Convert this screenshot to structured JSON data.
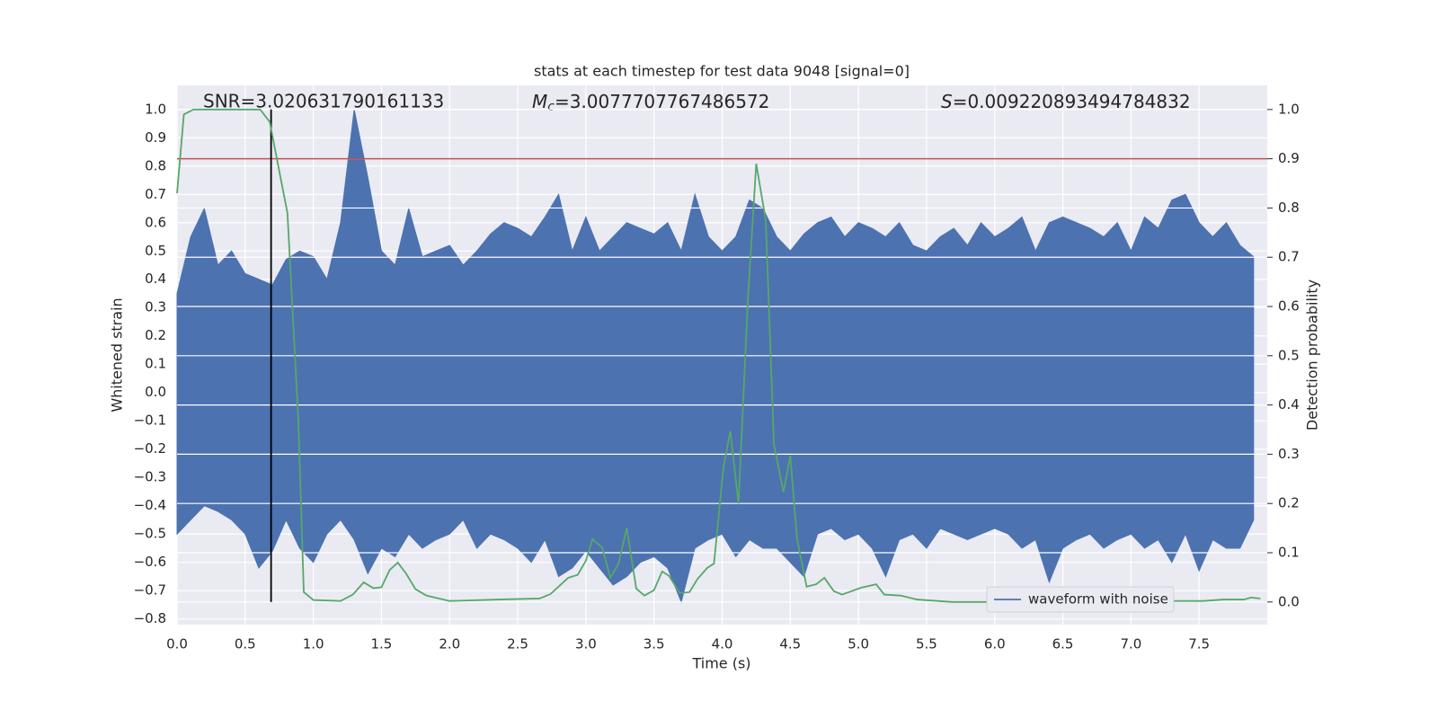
{
  "chart_data": {
    "type": "line",
    "title": "stats at each timestep for test data 9048 [signal=0]",
    "xlabel": "Time (s)",
    "ylabel": "Whitened strain",
    "y2label": "Detection probability",
    "xlim": [
      0,
      8.0
    ],
    "ylim": [
      -0.82,
      1.085
    ],
    "y2lim": [
      -0.046,
      1.049
    ],
    "xticks": [
      {
        "value": 0,
        "label": "0.0"
      },
      {
        "value": 0.5,
        "label": "0.5"
      },
      {
        "value": 1,
        "label": "1.0"
      },
      {
        "value": 1.5,
        "label": "1.5"
      },
      {
        "value": 2,
        "label": "2.0"
      },
      {
        "value": 2.5,
        "label": "2.5"
      },
      {
        "value": 3,
        "label": "3.0"
      },
      {
        "value": 3.5,
        "label": "3.5"
      },
      {
        "value": 4,
        "label": "4.0"
      },
      {
        "value": 4.5,
        "label": "4.5"
      },
      {
        "value": 5,
        "label": "5.0"
      },
      {
        "value": 5.5,
        "label": "5.5"
      },
      {
        "value": 6,
        "label": "6.0"
      },
      {
        "value": 6.5,
        "label": "6.5"
      },
      {
        "value": 7,
        "label": "7.0"
      },
      {
        "value": 7.5,
        "label": "7.5"
      }
    ],
    "yticks": [
      {
        "value": -0.8,
        "label": "−0.8"
      },
      {
        "value": -0.7,
        "label": "−0.7"
      },
      {
        "value": -0.6,
        "label": "−0.6"
      },
      {
        "value": -0.5,
        "label": "−0.5"
      },
      {
        "value": -0.4,
        "label": "−0.4"
      },
      {
        "value": -0.3,
        "label": "−0.3"
      },
      {
        "value": -0.2,
        "label": "−0.2"
      },
      {
        "value": -0.1,
        "label": "−0.1"
      },
      {
        "value": 0,
        "label": "0.0"
      },
      {
        "value": 0.1,
        "label": "0.1"
      },
      {
        "value": 0.2,
        "label": "0.2"
      },
      {
        "value": 0.3,
        "label": "0.3"
      },
      {
        "value": 0.4,
        "label": "0.4"
      },
      {
        "value": 0.5,
        "label": "0.5"
      },
      {
        "value": 0.6,
        "label": "0.6"
      },
      {
        "value": 0.7,
        "label": "0.7"
      },
      {
        "value": 0.8,
        "label": "0.8"
      },
      {
        "value": 0.9,
        "label": "0.9"
      },
      {
        "value": 1.0,
        "label": "1.0"
      }
    ],
    "y2ticks": [
      {
        "value": 0,
        "label": "0.0"
      },
      {
        "value": 0.1,
        "label": "0.1"
      },
      {
        "value": 0.2,
        "label": "0.2"
      },
      {
        "value": 0.3,
        "label": "0.3"
      },
      {
        "value": 0.4,
        "label": "0.4"
      },
      {
        "value": 0.5,
        "label": "0.5"
      },
      {
        "value": 0.6,
        "label": "0.6"
      },
      {
        "value": 0.7,
        "label": "0.7"
      },
      {
        "value": 0.8,
        "label": "0.8"
      },
      {
        "value": 0.9,
        "label": "0.9"
      },
      {
        "value": 1.0,
        "label": "1.0"
      }
    ],
    "grid": true,
    "legend": "lower right",
    "series": [
      {
        "name": "waveform with noise",
        "color": "#4c72b0",
        "x": [
          0,
          0.1,
          0.2,
          0.3,
          0.4,
          0.5,
          0.6,
          0.7,
          0.8,
          0.9,
          1.0,
          1.1,
          1.2,
          1.3,
          1.4,
          1.5,
          1.6,
          1.7,
          1.8,
          1.9,
          2.0,
          2.1,
          2.2,
          2.3,
          2.4,
          2.5,
          2.6,
          2.7,
          2.8,
          2.9,
          3.0,
          3.1,
          3.2,
          3.3,
          3.4,
          3.5,
          3.6,
          3.7,
          3.8,
          3.9,
          4.0,
          4.1,
          4.2,
          4.3,
          4.4,
          4.5,
          4.6,
          4.7,
          4.8,
          4.9,
          5.0,
          5.1,
          5.2,
          5.3,
          5.4,
          5.5,
          5.6,
          5.7,
          5.8,
          5.9,
          6.0,
          6.1,
          6.2,
          6.3,
          6.4,
          6.5,
          6.6,
          6.7,
          6.8,
          6.9,
          7.0,
          7.1,
          7.2,
          7.3,
          7.4,
          7.5,
          7.6,
          7.7,
          7.8,
          7.9
        ],
        "high": [
          0.35,
          0.55,
          0.65,
          0.45,
          0.5,
          0.42,
          0.4,
          0.38,
          0.47,
          0.5,
          0.48,
          0.4,
          0.6,
          1.0,
          0.76,
          0.5,
          0.45,
          0.65,
          0.48,
          0.5,
          0.52,
          0.45,
          0.5,
          0.56,
          0.6,
          0.58,
          0.55,
          0.62,
          0.7,
          0.5,
          0.62,
          0.5,
          0.55,
          0.6,
          0.58,
          0.56,
          0.6,
          0.5,
          0.7,
          0.55,
          0.5,
          0.55,
          0.68,
          0.65,
          0.55,
          0.5,
          0.56,
          0.6,
          0.62,
          0.55,
          0.6,
          0.58,
          0.55,
          0.6,
          0.52,
          0.5,
          0.55,
          0.58,
          0.52,
          0.6,
          0.55,
          0.58,
          0.62,
          0.5,
          0.6,
          0.62,
          0.6,
          0.58,
          0.55,
          0.6,
          0.5,
          0.62,
          0.58,
          0.68,
          0.7,
          0.6,
          0.55,
          0.6,
          0.52,
          0.48
        ],
        "low": [
          -0.5,
          -0.45,
          -0.4,
          -0.42,
          -0.45,
          -0.5,
          -0.62,
          -0.56,
          -0.45,
          -0.55,
          -0.6,
          -0.5,
          -0.45,
          -0.52,
          -0.64,
          -0.55,
          -0.58,
          -0.5,
          -0.55,
          -0.52,
          -0.5,
          -0.45,
          -0.55,
          -0.5,
          -0.52,
          -0.55,
          -0.6,
          -0.52,
          -0.65,
          -0.62,
          -0.56,
          -0.62,
          -0.68,
          -0.65,
          -0.6,
          -0.58,
          -0.62,
          -0.74,
          -0.55,
          -0.52,
          -0.5,
          -0.58,
          -0.52,
          -0.55,
          -0.55,
          -0.6,
          -0.65,
          -0.5,
          -0.48,
          -0.52,
          -0.5,
          -0.55,
          -0.65,
          -0.52,
          -0.5,
          -0.55,
          -0.48,
          -0.5,
          -0.52,
          -0.5,
          -0.48,
          -0.5,
          -0.55,
          -0.52,
          -0.67,
          -0.55,
          -0.52,
          -0.5,
          -0.55,
          -0.52,
          -0.5,
          -0.55,
          -0.52,
          -0.6,
          -0.5,
          -0.63,
          -0.52,
          -0.55,
          -0.55,
          -0.45
        ]
      },
      {
        "color": "#55a868",
        "axis": "y2",
        "x": [
          0,
          0.05,
          0.12,
          0.61,
          0.68,
          0.75,
          0.81,
          0.89,
          0.93,
          1.0,
          1.2,
          1.29,
          1.37,
          1.44,
          1.5,
          1.56,
          1.62,
          1.68,
          1.75,
          1.83,
          2.0,
          2.36,
          2.66,
          2.74,
          2.87,
          2.94,
          3.0,
          3.05,
          3.12,
          3.18,
          3.24,
          3.3,
          3.37,
          3.43,
          3.5,
          3.56,
          3.61,
          3.69,
          3.76,
          3.82,
          3.89,
          3.94,
          4.01,
          4.06,
          4.12,
          4.19,
          4.25,
          4.32,
          4.38,
          4.45,
          4.5,
          4.55,
          4.62,
          4.69,
          4.75,
          4.82,
          4.88,
          5.02,
          5.13,
          5.19,
          5.31,
          5.43,
          5.69,
          6.28,
          6.43,
          6.55,
          7.27,
          7.53,
          7.68,
          7.83,
          7.88,
          7.95
        ],
        "values": [
          0.83,
          0.99,
          1.0,
          1.0,
          0.975,
          0.875,
          0.79,
          0.37,
          0.02,
          0.004,
          0.002,
          0.015,
          0.04,
          0.028,
          0.03,
          0.065,
          0.08,
          0.058,
          0.026,
          0.013,
          0.002,
          0.005,
          0.007,
          0.016,
          0.049,
          0.055,
          0.084,
          0.128,
          0.11,
          0.049,
          0.078,
          0.15,
          0.027,
          0.013,
          0.024,
          0.062,
          0.053,
          0.018,
          0.02,
          0.047,
          0.069,
          0.078,
          0.274,
          0.347,
          0.2,
          0.62,
          0.89,
          0.775,
          0.32,
          0.223,
          0.297,
          0.128,
          0.031,
          0.036,
          0.049,
          0.022,
          0.015,
          0.029,
          0.036,
          0.015,
          0.013,
          0.005,
          0,
          0,
          0.005,
          0.002,
          0.002,
          0.002,
          0.005,
          0.005,
          0.009,
          0.007
        ]
      }
    ],
    "threshold": {
      "y2": 0.9,
      "color": "#c44e52"
    },
    "marker": {
      "x": 0.69,
      "y": [
        -0.74,
        1.0
      ],
      "color": "#000000"
    },
    "annotations": [
      {
        "text": "SNR=3.020631790161133"
      },
      {
        "symbol": "M",
        "subscript": "c",
        "text": "=3.0077707767486572"
      },
      {
        "symbol": "S",
        "text": "=0.009220893494784832"
      }
    ]
  }
}
